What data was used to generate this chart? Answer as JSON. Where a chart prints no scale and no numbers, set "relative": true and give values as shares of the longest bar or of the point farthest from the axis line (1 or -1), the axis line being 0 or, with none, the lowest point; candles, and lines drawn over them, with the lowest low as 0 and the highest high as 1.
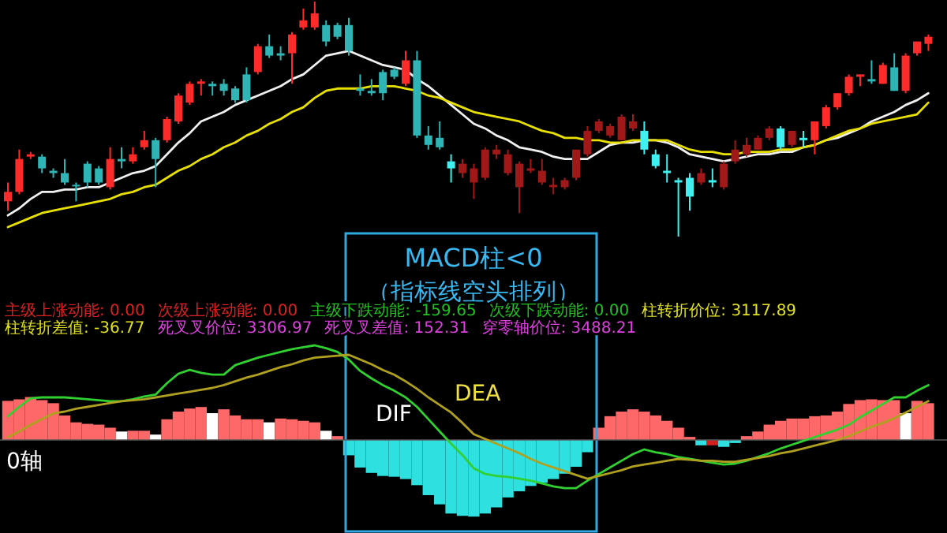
{
  "chart_data": [
    {
      "type": "candlestick",
      "relative": true,
      "categories": [
        null,
        null,
        null,
        null,
        null,
        null,
        null,
        null,
        null,
        null,
        null,
        null,
        null,
        null,
        null,
        null,
        null,
        null,
        null,
        null,
        null,
        null,
        null,
        null,
        null,
        null,
        null,
        null,
        null,
        null,
        null,
        null,
        null,
        null,
        null,
        null,
        null,
        null,
        null,
        null,
        null,
        null,
        null,
        null,
        null,
        null,
        null,
        null,
        null,
        null,
        null,
        null,
        null,
        null,
        null,
        null,
        null,
        null,
        null,
        null,
        null,
        null,
        null,
        null,
        null,
        null,
        null,
        null,
        null,
        null,
        null,
        null,
        null,
        null,
        null,
        null,
        null,
        null,
        null,
        null,
        null,
        null
      ],
      "ohlc": [
        [
          0.15,
          0.23,
          0.11,
          0.19
        ],
        [
          0.19,
          0.37,
          0.18,
          0.33
        ],
        [
          0.34,
          0.36,
          0.33,
          0.35
        ],
        [
          0.34,
          0.35,
          0.27,
          0.29
        ],
        [
          0.28,
          0.29,
          0.25,
          0.27
        ],
        [
          0.27,
          0.33,
          0.22,
          0.23
        ],
        [
          0.22,
          0.23,
          0.15,
          0.22
        ],
        [
          0.31,
          0.32,
          0.21,
          0.23
        ],
        [
          0.29,
          0.3,
          0.22,
          0.23
        ],
        [
          0.21,
          0.38,
          0.2,
          0.33
        ],
        [
          0.33,
          0.38,
          0.29,
          0.32
        ],
        [
          0.32,
          0.38,
          0.31,
          0.35
        ],
        [
          0.38,
          0.45,
          0.37,
          0.41
        ],
        [
          0.41,
          0.42,
          0.21,
          0.33
        ],
        [
          0.41,
          0.51,
          0.4,
          0.5
        ],
        [
          0.49,
          0.61,
          0.48,
          0.6
        ],
        [
          0.57,
          0.66,
          0.56,
          0.65
        ],
        [
          0.65,
          0.67,
          0.6,
          0.66
        ],
        [
          0.65,
          0.66,
          0.6,
          0.64
        ],
        [
          0.65,
          0.67,
          0.6,
          0.62
        ],
        [
          0.63,
          0.64,
          0.57,
          0.58
        ],
        [
          0.69,
          0.72,
          0.57,
          0.58
        ],
        [
          0.7,
          0.82,
          0.69,
          0.81
        ],
        [
          0.81,
          0.86,
          0.76,
          0.77
        ],
        [
          0.78,
          0.81,
          0.75,
          0.77
        ],
        [
          0.78,
          0.87,
          0.65,
          0.86
        ],
        [
          0.89,
          0.97,
          0.88,
          0.92
        ],
        [
          0.89,
          1,
          0.88,
          0.95
        ],
        [
          0.9,
          0.92,
          0.81,
          0.83
        ],
        [
          0.9,
          0.91,
          0.84,
          0.85
        ],
        [
          0.9,
          0.93,
          0.77,
          0.79
        ],
        [
          0.63,
          0.69,
          0.6,
          0.62
        ],
        [
          0.62,
          0.67,
          0.6,
          0.61
        ],
        [
          0.7,
          0.71,
          0.58,
          0.61
        ],
        [
          0.71,
          0.72,
          0.67,
          0.68
        ],
        [
          0.65,
          0.79,
          0.64,
          0.75
        ],
        [
          0.75,
          0.79,
          0.42,
          0.43
        ],
        [
          0.43,
          0.47,
          0.37,
          0.39
        ],
        [
          0.42,
          0.49,
          0.37,
          0.38
        ],
        [
          0.32,
          0.35,
          0.23,
          0.29
        ],
        [
          0.27,
          0.33,
          0.25,
          0.31
        ],
        [
          0.23,
          0.31,
          0.16,
          0.29
        ],
        [
          0.25,
          0.38,
          0.24,
          0.37
        ],
        [
          0.35,
          0.39,
          0.33,
          0.37
        ],
        [
          0.27,
          0.37,
          0.26,
          0.35
        ],
        [
          0.21,
          0.32,
          0.1,
          0.31
        ],
        [
          0.28,
          0.33,
          0.27,
          0.29
        ],
        [
          0.23,
          0.33,
          0.22,
          0.28
        ],
        [
          0.21,
          0.25,
          0.18,
          0.22
        ],
        [
          0.21,
          0.25,
          0.2,
          0.24
        ],
        [
          0.25,
          0.37,
          0.24,
          0.37
        ],
        [
          0.35,
          0.47,
          0.34,
          0.45
        ],
        [
          0.45,
          0.5,
          0.44,
          0.49
        ],
        [
          0.43,
          0.48,
          0.42,
          0.47
        ],
        [
          0.41,
          0.52,
          0.41,
          0.51
        ],
        [
          0.46,
          0.52,
          0.45,
          0.49
        ],
        [
          0.45,
          0.49,
          0.35,
          0.37
        ],
        [
          0.35,
          0.37,
          0.29,
          0.3
        ],
        [
          0.28,
          0.35,
          0.23,
          0.27
        ],
        [
          0.24,
          0.25,
          0,
          0.23
        ],
        [
          0.25,
          0.27,
          0.11,
          0.17
        ],
        [
          0.23,
          0.29,
          0.22,
          0.27
        ],
        [
          0.24,
          0.29,
          0.21,
          0.23
        ],
        [
          0.21,
          0.32,
          0.2,
          0.31
        ],
        [
          0.32,
          0.41,
          0.31,
          0.37
        ],
        [
          0.35,
          0.42,
          0.34,
          0.39
        ],
        [
          0.37,
          0.43,
          0.37,
          0.42
        ],
        [
          0.42,
          0.47,
          0.41,
          0.46
        ],
        [
          0.46,
          0.47,
          0.37,
          0.38
        ],
        [
          0.39,
          0.45,
          0.38,
          0.45
        ],
        [
          0.42,
          0.45,
          0.38,
          0.41
        ],
        [
          0.41,
          0.49,
          0.35,
          0.49
        ],
        [
          0.47,
          0.56,
          0.46,
          0.55
        ],
        [
          0.55,
          0.61,
          0.54,
          0.61
        ],
        [
          0.61,
          0.69,
          0.6,
          0.68
        ],
        [
          0.68,
          0.69,
          0.64,
          0.69
        ],
        [
          0.67,
          0.75,
          0.65,
          0.66
        ],
        [
          0.65,
          0.74,
          0.65,
          0.73
        ],
        [
          0.72,
          0.78,
          0.62,
          0.62
        ],
        [
          0.62,
          0.78,
          0.61,
          0.77
        ],
        [
          0.78,
          0.83,
          0.77,
          0.83
        ],
        [
          0.82,
          0.86,
          0.79,
          0.85
        ]
      ],
      "colors": [
        "#ff2a2a",
        "#ff2a2a",
        "#ff2a2a",
        "#2fb5b5",
        "#2fb5b5",
        "#2fb5b5",
        "#2fb5b5",
        "#2fb5b5",
        "#2fb5b5",
        "#ff2a2a",
        "#2fb5b5",
        "#ff2a2a",
        "#ff2a2a",
        "#2fb5b5",
        "#ff2a2a",
        "#ff2a2a",
        "#ff2a2a",
        "#ff2a2a",
        "#2fb5b5",
        "#2fb5b5",
        "#2fb5b5",
        "#2fb5b5",
        "#ff2a2a",
        "#2fb5b5",
        "#2fb5b5",
        "#ff2a2a",
        "#ff2a2a",
        "#ff2a2a",
        "#2fb5b5",
        "#2fb5b5",
        "#2fb5b5",
        "#2fb5b5",
        "#2fb5b5",
        "#2fb5b5",
        "#2fb5b5",
        "#ff2a2a",
        "#2fb5b5",
        "#2fb5b5",
        "#2fb5b5",
        "#40f0f0",
        "#a01818",
        "#a01818",
        "#a01818",
        "#a01818",
        "#a01818",
        "#a01818",
        "#a01818",
        "#a01818",
        "#a01818",
        "#a01818",
        "#a01818",
        "#a01818",
        "#a01818",
        "#a01818",
        "#a01818",
        "#a01818",
        "#40f0f0",
        "#40f0f0",
        "#40f0f0",
        "#40f0f0",
        "#40f0f0",
        "#a01818",
        "#40f0f0",
        "#a01818",
        "#a01818",
        "#a01818",
        "#a01818",
        "#a01818",
        "#40f0f0",
        "#a01818",
        "#40f0f0",
        "#ff2a2a",
        "#ff2a2a",
        "#ff2a2a",
        "#ff2a2a",
        "#ff2a2a",
        "#2fb5b5",
        "#ff2a2a",
        "#2fb5b5",
        "#ff2a2a",
        "#ff2a2a",
        "#ff2a2a"
      ],
      "series": [
        {
          "type": "line",
          "color": "#f0f0f0",
          "values": [
            0.09,
            0.12,
            0.16,
            0.19,
            0.19,
            0.2,
            0.2,
            0.21,
            0.21,
            0.23,
            0.25,
            0.27,
            0.28,
            0.3,
            0.35,
            0.4,
            0.44,
            0.49,
            0.51,
            0.53,
            0.56,
            0.58,
            0.6,
            0.62,
            0.64,
            0.67,
            0.69,
            0.73,
            0.77,
            0.78,
            0.79,
            0.77,
            0.75,
            0.73,
            0.72,
            0.71,
            0.67,
            0.64,
            0.6,
            0.56,
            0.52,
            0.48,
            0.46,
            0.43,
            0.41,
            0.38,
            0.37,
            0.36,
            0.34,
            0.33,
            0.33,
            0.33,
            0.36,
            0.39,
            0.4,
            0.4,
            0.41,
            0.41,
            0.4,
            0.38,
            0.35,
            0.34,
            0.33,
            0.32,
            0.33,
            0.34,
            0.35,
            0.35,
            0.36,
            0.36,
            0.38,
            0.39,
            0.41,
            0.42,
            0.44,
            0.46,
            0.49,
            0.51,
            0.53,
            0.56,
            0.58,
            0.61
          ]
        },
        {
          "type": "line",
          "color": "#e8e000",
          "values": [
            0.04,
            0.06,
            0.08,
            0.1,
            0.11,
            0.12,
            0.13,
            0.14,
            0.15,
            0.16,
            0.18,
            0.19,
            0.21,
            0.22,
            0.25,
            0.28,
            0.3,
            0.33,
            0.35,
            0.38,
            0.4,
            0.43,
            0.45,
            0.48,
            0.5,
            0.53,
            0.55,
            0.59,
            0.62,
            0.63,
            0.63,
            0.63,
            0.64,
            0.64,
            0.64,
            0.63,
            0.62,
            0.6,
            0.59,
            0.57,
            0.55,
            0.53,
            0.52,
            0.51,
            0.5,
            0.49,
            0.47,
            0.45,
            0.44,
            0.42,
            0.42,
            0.41,
            0.41,
            0.4,
            0.4,
            0.41,
            0.41,
            0.41,
            0.41,
            0.39,
            0.37,
            0.36,
            0.36,
            0.35,
            0.35,
            0.36,
            0.36,
            0.36,
            0.37,
            0.37,
            0.38,
            0.39,
            0.41,
            0.43,
            0.45,
            0.46,
            0.48,
            0.49,
            0.5,
            0.51,
            0.52,
            0.57
          ]
        }
      ]
    },
    {
      "type": "bar",
      "relative": true,
      "categories": [
        null,
        null,
        null,
        null,
        null,
        null,
        null,
        null,
        null,
        null,
        null,
        null,
        null,
        null,
        null,
        null,
        null,
        null,
        null,
        null,
        null,
        null,
        null,
        null,
        null,
        null,
        null,
        null,
        null,
        null,
        null,
        null,
        null,
        null,
        null,
        null,
        null,
        null,
        null,
        null,
        null,
        null,
        null,
        null,
        null,
        null,
        null,
        null,
        null,
        null,
        null,
        null,
        null,
        null,
        null,
        null,
        null,
        null,
        null,
        null,
        null,
        null,
        null,
        null,
        null,
        null,
        null,
        null,
        null,
        null,
        null,
        null,
        null,
        null,
        null,
        null,
        null,
        null,
        null,
        null,
        null,
        null
      ],
      "series": [
        {
          "type": "bar",
          "values": [
            0.51,
            0.53,
            0.56,
            0.52,
            0.48,
            0.32,
            0.23,
            0.21,
            0.2,
            0.16,
            0.11,
            0.12,
            0.12,
            0.07,
            0.27,
            0.37,
            0.41,
            0.43,
            0.35,
            0.4,
            0.32,
            0.27,
            0.27,
            0.23,
            0.28,
            0.27,
            0.25,
            0.23,
            0.12,
            0.05,
            -0.2,
            -0.36,
            -0.43,
            -0.47,
            -0.48,
            -0.51,
            -0.59,
            -0.72,
            -0.84,
            -0.96,
            -0.99,
            -1,
            -0.96,
            -0.88,
            -0.75,
            -0.67,
            -0.6,
            -0.56,
            -0.51,
            -0.44,
            -0.35,
            -0.16,
            0.16,
            0.31,
            0.37,
            0.4,
            0.37,
            0.32,
            0.25,
            0.16,
            0.04,
            -0.07,
            -0.07,
            -0.09,
            -0.04,
            0.05,
            0.11,
            0.2,
            0.25,
            0.28,
            0.28,
            0.31,
            0.32,
            0.37,
            0.47,
            0.52,
            0.53,
            0.52,
            0.52,
            0.35,
            0.51,
            0.48
          ],
          "colors": [
            "#ff6868",
            "#ff6868",
            "#ff6868",
            "#ff6868",
            "#ff6868",
            "#ff6868",
            "#ff6868",
            "#ff6868",
            "#ff6868",
            "#ff6868",
            "#ffffff",
            "#ff6868",
            "#ff6868",
            "#ffffff",
            "#ff6868",
            "#ff6868",
            "#ff6868",
            "#ff6868",
            "#ffffff",
            "#ff6868",
            "#ff6868",
            "#ff6868",
            "#ff6868",
            "#ffffff",
            "#ff6868",
            "#ff6868",
            "#ff6868",
            "#ff6868",
            "#ffffff",
            "#ff6868",
            "#2ee0e0",
            "#2ee0e0",
            "#2ee0e0",
            "#2ee0e0",
            "#2ee0e0",
            "#2ee0e0",
            "#2ee0e0",
            "#2ee0e0",
            "#2ee0e0",
            "#2ee0e0",
            "#2ee0e0",
            "#2ee0e0",
            "#2ee0e0",
            "#2ee0e0",
            "#2ee0e0",
            "#2ee0e0",
            "#2ee0e0",
            "#2ee0e0",
            "#2ee0e0",
            "#2ee0e0",
            "#2ee0e0",
            "#2ee0e0",
            "#ff6868",
            "#ff6868",
            "#ff6868",
            "#ff6868",
            "#ff6868",
            "#ff6868",
            "#ff6868",
            "#ff6868",
            "#ff6868",
            "#2ee0e0",
            "#d02020",
            "#2ee0e0",
            "#2ee0e0",
            "#ff6868",
            "#ff6868",
            "#ff6868",
            "#ff6868",
            "#ff6868",
            "#ff6868",
            "#ff6868",
            "#ff6868",
            "#ff6868",
            "#ff6868",
            "#ff6868",
            "#ff6868",
            "#ff6868",
            "#ff6868",
            "#ffffff",
            "#ff6868",
            "#ff6868"
          ]
        }
      ],
      "annotations": [
        "MACD柱<0",
        "（指标线空头排列）",
        "0轴",
        "主级上涨动能: 0.00",
        "次级上涨动能: 0.00",
        "主级下跌动能: -159.65",
        "次级下跌动能: 0.00",
        "柱转折价位: 3117.89",
        "柱转折差值: -36.77",
        "死叉叉价位: 3306.97",
        "死叉叉差值: 152.31",
        "穿零轴价位: 3488.21"
      ]
    },
    {
      "type": "line",
      "relative": true,
      "categories": [
        null,
        null,
        null,
        null,
        null,
        null,
        null,
        null,
        null,
        null,
        null,
        null,
        null,
        null,
        null,
        null,
        null,
        null,
        null,
        null,
        null,
        null,
        null,
        null,
        null,
        null,
        null,
        null,
        null,
        null,
        null,
        null,
        null,
        null,
        null,
        null,
        null,
        null,
        null,
        null,
        null,
        null,
        null,
        null,
        null,
        null,
        null,
        null,
        null,
        null,
        null,
        null,
        null,
        null,
        null,
        null,
        null,
        null,
        null,
        null,
        null,
        null,
        null,
        null,
        null,
        null,
        null,
        null,
        null,
        null,
        null,
        null,
        null,
        null,
        null,
        null,
        null,
        null,
        null,
        null,
        null,
        null
      ],
      "series": [
        {
          "type": "line",
          "name": "DIF",
          "color": "#30d030",
          "values": [
            0.25,
            0.35,
            0.44,
            0.45,
            0.45,
            0.45,
            0.44,
            0.43,
            0.42,
            0.41,
            0.41,
            0.43,
            0.46,
            0.48,
            0.6,
            0.7,
            0.74,
            0.71,
            0.69,
            0.69,
            0.79,
            0.83,
            0.87,
            0.9,
            0.93,
            0.96,
            0.98,
            1,
            0.97,
            0.93,
            0.85,
            0.73,
            0.65,
            0.58,
            0.52,
            0.45,
            0.35,
            0.22,
            0.09,
            -0.04,
            -0.16,
            -0.3,
            -0.36,
            -0.38,
            -0.39,
            -0.41,
            -0.43,
            -0.46,
            -0.49,
            -0.51,
            -0.51,
            -0.43,
            -0.36,
            -0.29,
            -0.22,
            -0.15,
            -0.1,
            -0.13,
            -0.15,
            -0.18,
            -0.2,
            -0.22,
            -0.24,
            -0.26,
            -0.25,
            -0.22,
            -0.18,
            -0.14,
            -0.09,
            -0.05,
            -0.01,
            0.03,
            0.07,
            0.11,
            0.16,
            0.24,
            0.31,
            0.38,
            0.45,
            0.45,
            0.52,
            0.58
          ]
        },
        {
          "type": "line",
          "name": "DEA",
          "color": "#b0a020",
          "values": [
            0.03,
            0.09,
            0.16,
            0.22,
            0.28,
            0.3,
            0.33,
            0.35,
            0.37,
            0.39,
            0.41,
            0.42,
            0.43,
            0.45,
            0.47,
            0.49,
            0.51,
            0.53,
            0.55,
            0.58,
            0.62,
            0.66,
            0.69,
            0.73,
            0.77,
            0.8,
            0.84,
            0.87,
            0.88,
            0.89,
            0.9,
            0.85,
            0.8,
            0.74,
            0.69,
            0.62,
            0.54,
            0.45,
            0.37,
            0.29,
            0.18,
            0.06,
            0.01,
            -0.04,
            -0.09,
            -0.14,
            -0.2,
            -0.25,
            -0.29,
            -0.33,
            -0.37,
            -0.41,
            -0.38,
            -0.35,
            -0.32,
            -0.28,
            -0.26,
            -0.24,
            -0.22,
            -0.2,
            -0.21,
            -0.22,
            -0.22,
            -0.23,
            -0.23,
            -0.21,
            -0.19,
            -0.17,
            -0.14,
            -0.12,
            -0.09,
            -0.06,
            -0.03,
            0.0,
            0.04,
            0.09,
            0.14,
            0.18,
            0.23,
            0.29,
            0.35,
            0.41
          ]
        }
      ]
    }
  ]
}
